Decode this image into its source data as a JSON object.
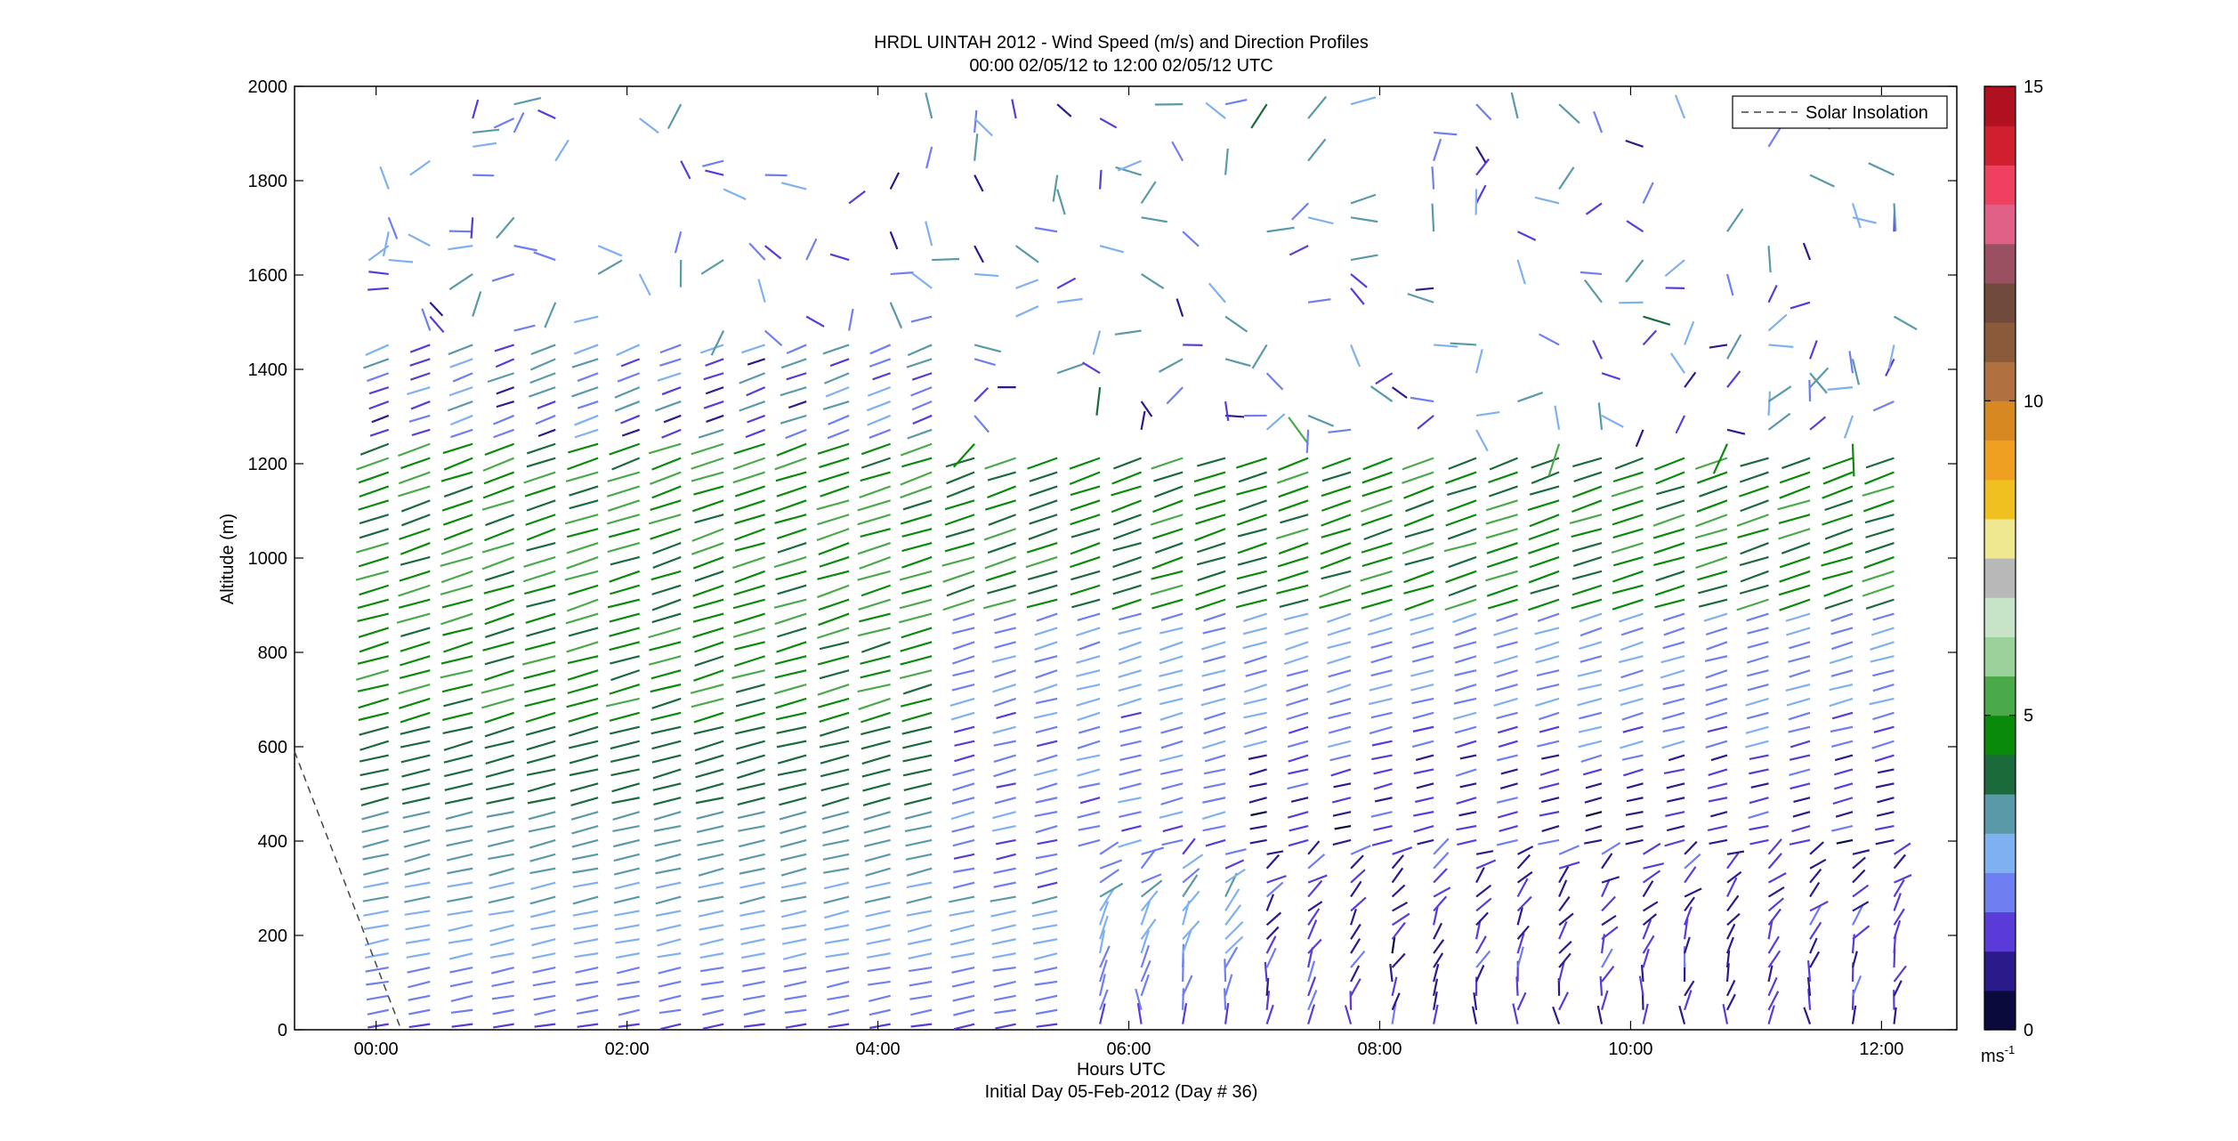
{
  "chart_data": {
    "type": "wind_barb_profile",
    "title": "HRDL UINTAH 2012 - Wind Speed (m/s) and Direction Profiles",
    "subtitle": "00:00 02/05/12 to 12:00 02/05/12  UTC",
    "xlabel": "Hours UTC",
    "xlabel2": "Initial Day 05-Feb-2012 (Day # 36)",
    "ylabel": "Altitude (m)",
    "x_ticks": [
      "00:00",
      "02:00",
      "04:00",
      "06:00",
      "08:00",
      "10:00",
      "12:00"
    ],
    "x_tick_hours": [
      0,
      2,
      4,
      6,
      8,
      10,
      12
    ],
    "xlim_hours": [
      -0.65,
      12.6
    ],
    "y_ticks": [
      "0",
      "200",
      "400",
      "600",
      "800",
      "1000",
      "1200",
      "1400",
      "1600",
      "1800",
      "2000"
    ],
    "ylim": [
      0,
      2000
    ],
    "legend": {
      "label": "Solar Insolation",
      "placement": "top-right"
    },
    "colorbar": {
      "ticks": [
        "0",
        "5",
        "10",
        "15"
      ],
      "range": [
        0,
        15
      ],
      "unit_base": "ms",
      "unit_exp": "-1",
      "colors": [
        "#0a0a3c",
        "#2a1a8a",
        "#5a3ad8",
        "#6f7ef0",
        "#7fb0f0",
        "#5a9aa8",
        "#1a6a3a",
        "#0a8a0a",
        "#4aaa4a",
        "#9ad09a",
        "#c8e4c8",
        "#b8b8b8",
        "#f0e890",
        "#f0c020",
        "#f0a020",
        "#d88820",
        "#b07040",
        "#8a5a3a",
        "#704a3a",
        "#9a5060",
        "#e06088",
        "#f04060",
        "#d02030",
        "#b01020"
      ]
    },
    "solar_insolation": {
      "x_hours": [
        -0.65,
        0.2
      ],
      "y": [
        590,
        0
      ]
    },
    "profile_times_hours": [
      0.1,
      0.43,
      0.77,
      1.1,
      1.43,
      1.77,
      2.1,
      2.43,
      2.77,
      3.1,
      3.43,
      3.77,
      4.1,
      4.43,
      4.77,
      5.1,
      5.43,
      5.77,
      6.1,
      6.43,
      6.77,
      7.1,
      7.43,
      7.77,
      8.1,
      8.43,
      8.77,
      9.1,
      9.43,
      9.77,
      10.1,
      10.43,
      10.77,
      11.1,
      11.43,
      11.77,
      12.1
    ]
  }
}
